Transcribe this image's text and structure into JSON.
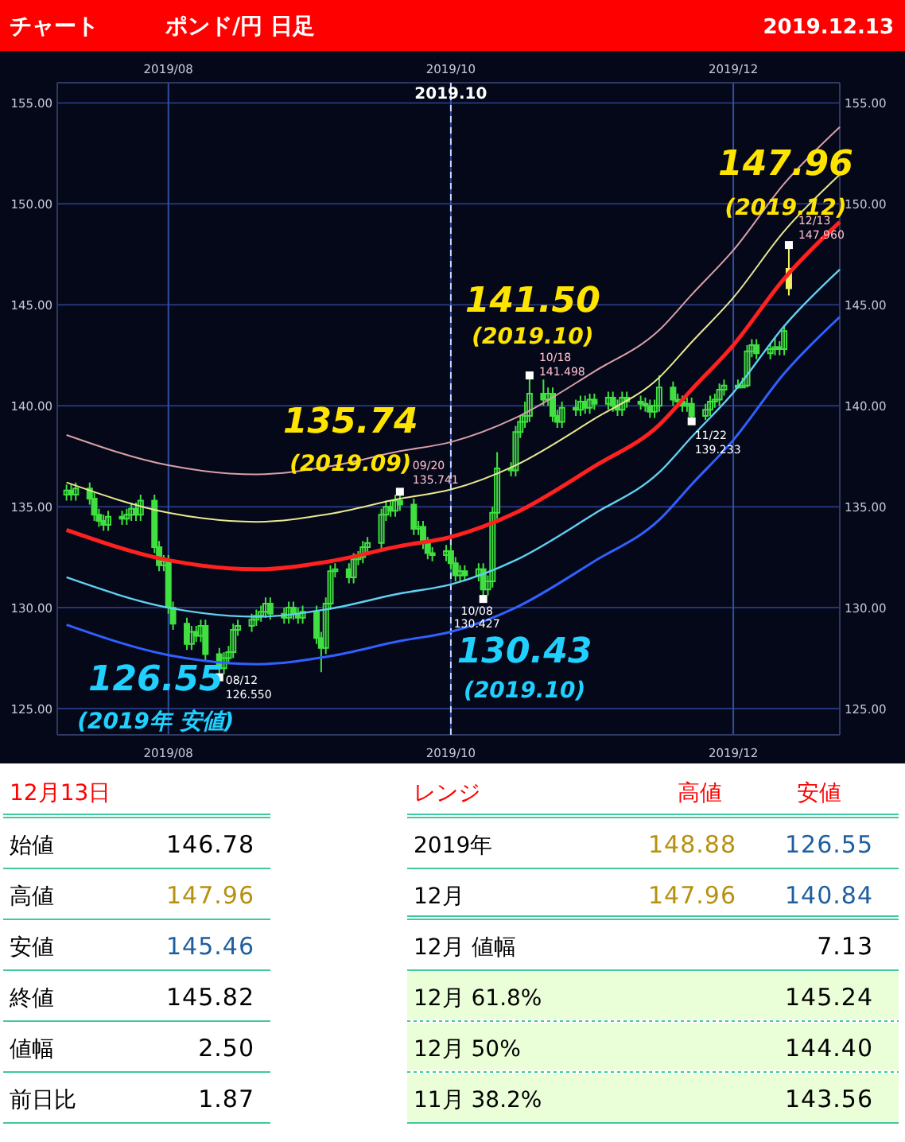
{
  "chart_data": [
    {
      "type": "candlestick",
      "title": "ポンド/円 日足",
      "subtitle": "2019.12.13",
      "xlim": [
        "2019-07-08",
        "2019-12-24"
      ],
      "xticks": [
        {
          "value": "2019-08-01",
          "label": "2019/08"
        },
        {
          "value": "2019-10-01",
          "label": "2019/10"
        },
        {
          "value": "2019-12-01",
          "label": "2019/12"
        }
      ],
      "x2lim": [
        "2019-07-08",
        "2019-12-24"
      ],
      "x2ticks": [
        {
          "value": "2019-08-01",
          "label": "2019/08"
        },
        {
          "value": "2019-10-01",
          "label": "2019/10"
        },
        {
          "value": "2019-12-01",
          "label": "2019/12"
        }
      ],
      "ylim": [
        123.7,
        156.0
      ],
      "yticks": [
        {
          "value": 125,
          "label": "125.00"
        },
        {
          "value": 130,
          "label": "130.00"
        },
        {
          "value": 135,
          "label": "135.00"
        },
        {
          "value": 140,
          "label": "140.00"
        },
        {
          "value": 145,
          "label": "145.00"
        },
        {
          "value": 150,
          "label": "150.00"
        },
        {
          "value": 155,
          "label": "155.00"
        }
      ],
      "y2lim": [
        123.7,
        156.0
      ],
      "y2ticks": [
        {
          "value": 125,
          "label": "125.00"
        },
        {
          "value": 130,
          "label": "130.00"
        },
        {
          "value": 135,
          "label": "135.00"
        },
        {
          "value": 140,
          "label": "140.00"
        },
        {
          "value": 145,
          "label": "145.00"
        },
        {
          "value": 150,
          "label": "150.00"
        },
        {
          "value": 155,
          "label": "155.00"
        }
      ],
      "grid": true,
      "ref_lines": [
        {
          "axis": "x",
          "value": "2019-10-01",
          "label": "2019.10",
          "line_style": "dashed",
          "color": "#c8d8ff"
        }
      ],
      "series": [
        {
          "type": "candlestick",
          "color": "#40e040",
          "x": [
            "2019-07-10",
            "2019-07-11",
            "2019-07-12",
            "2019-07-15",
            "2019-07-16",
            "2019-07-17",
            "2019-07-18",
            "2019-07-19",
            "2019-07-22",
            "2019-07-23",
            "2019-07-24",
            "2019-07-25",
            "2019-07-26",
            "2019-07-29",
            "2019-07-30",
            "2019-07-31",
            "2019-08-01",
            "2019-08-02",
            "2019-08-05",
            "2019-08-06",
            "2019-08-07",
            "2019-08-08",
            "2019-08-09",
            "2019-08-12",
            "2019-08-13",
            "2019-08-14",
            "2019-08-15",
            "2019-08-16",
            "2019-08-19",
            "2019-08-20",
            "2019-08-21",
            "2019-08-22",
            "2019-08-23",
            "2019-08-26",
            "2019-08-27",
            "2019-08-28",
            "2019-08-29",
            "2019-08-30",
            "2019-09-02",
            "2019-09-03",
            "2019-09-04",
            "2019-09-05",
            "2019-09-06",
            "2019-09-09",
            "2019-09-10",
            "2019-09-11",
            "2019-09-12",
            "2019-09-13",
            "2019-09-16",
            "2019-09-17",
            "2019-09-18",
            "2019-09-19",
            "2019-09-20",
            "2019-09-23",
            "2019-09-24",
            "2019-09-25",
            "2019-09-26",
            "2019-09-27",
            "2019-09-30",
            "2019-10-01",
            "2019-10-02",
            "2019-10-03",
            "2019-10-04",
            "2019-10-07",
            "2019-10-08",
            "2019-10-09",
            "2019-10-10",
            "2019-10-11",
            "2019-10-14",
            "2019-10-15",
            "2019-10-16",
            "2019-10-17",
            "2019-10-18",
            "2019-10-21",
            "2019-10-22",
            "2019-10-23",
            "2019-10-24",
            "2019-10-25",
            "2019-10-28",
            "2019-10-29",
            "2019-10-30",
            "2019-10-31",
            "2019-11-01",
            "2019-11-04",
            "2019-11-05",
            "2019-11-06",
            "2019-11-07",
            "2019-11-08",
            "2019-11-11",
            "2019-11-12",
            "2019-11-13",
            "2019-11-14",
            "2019-11-15",
            "2019-11-18",
            "2019-11-19",
            "2019-11-20",
            "2019-11-21",
            "2019-11-22",
            "2019-11-25",
            "2019-11-26",
            "2019-11-27",
            "2019-11-28",
            "2019-11-29",
            "2019-12-02",
            "2019-12-03",
            "2019-12-04",
            "2019-12-05",
            "2019-12-06",
            "2019-12-09",
            "2019-12-10",
            "2019-12-11",
            "2019-12-12"
          ],
          "ohlc": [
            [
              135.6,
              136.1,
              135.3,
              135.8
            ],
            [
              135.8,
              136.1,
              135.3,
              135.6
            ],
            [
              135.6,
              136.2,
              135.3,
              135.9
            ],
            [
              135.9,
              136.2,
              135.1,
              135.4
            ],
            [
              135.4,
              135.7,
              134.3,
              134.6
            ],
            [
              134.6,
              134.9,
              134.0,
              134.3
            ],
            [
              134.3,
              134.6,
              133.8,
              134.1
            ],
            [
              134.1,
              134.8,
              133.8,
              134.5
            ],
            [
              134.5,
              134.8,
              134.1,
              134.4
            ],
            [
              134.4,
              134.9,
              134.1,
              134.6
            ],
            [
              134.6,
              135.2,
              134.3,
              134.9
            ],
            [
              134.9,
              135.2,
              134.3,
              134.6
            ],
            [
              134.6,
              135.6,
              134.3,
              135.3
            ],
            [
              135.3,
              135.6,
              132.7,
              133.0
            ],
            [
              133.0,
              133.3,
              131.8,
              132.1
            ],
            [
              132.1,
              132.6,
              131.8,
              132.3
            ],
            [
              132.3,
              132.6,
              129.7,
              130.0
            ],
            [
              130.0,
              130.3,
              128.9,
              129.2
            ],
            [
              129.2,
              129.5,
              127.9,
              128.2
            ],
            [
              128.2,
              129.1,
              127.9,
              128.8
            ],
            [
              128.8,
              129.1,
              128.3,
              128.6
            ],
            [
              128.6,
              129.4,
              128.3,
              129.1
            ],
            [
              129.1,
              129.4,
              127.4,
              127.7
            ],
            [
              127.7,
              128.0,
              126.55,
              127.0
            ],
            [
              127.0,
              127.8,
              126.7,
              127.5
            ],
            [
              127.5,
              128.1,
              127.2,
              127.8
            ],
            [
              127.8,
              129.2,
              127.5,
              128.9
            ],
            [
              128.9,
              129.4,
              128.6,
              129.1
            ],
            [
              129.1,
              129.7,
              128.8,
              129.4
            ],
            [
              129.4,
              129.9,
              129.1,
              129.6
            ],
            [
              129.6,
              130.1,
              129.3,
              129.8
            ],
            [
              129.8,
              130.5,
              129.5,
              130.2
            ],
            [
              130.2,
              130.5,
              129.4,
              129.7
            ],
            [
              129.7,
              130.0,
              129.2,
              129.5
            ],
            [
              129.5,
              130.3,
              129.2,
              130.0
            ],
            [
              130.0,
              130.3,
              129.4,
              129.7
            ],
            [
              129.7,
              130.0,
              129.2,
              129.5
            ],
            [
              129.5,
              130.1,
              129.2,
              129.8
            ],
            [
              129.8,
              130.1,
              128.2,
              128.5
            ],
            [
              128.5,
              128.8,
              126.8,
              128.0
            ],
            [
              128.0,
              130.5,
              127.7,
              130.2
            ],
            [
              130.2,
              132.1,
              129.9,
              131.8
            ],
            [
              131.8,
              132.2,
              131.5,
              131.9
            ],
            [
              131.9,
              132.2,
              131.2,
              131.5
            ],
            [
              131.5,
              132.7,
              131.2,
              132.4
            ],
            [
              132.4,
              132.8,
              132.1,
              132.5
            ],
            [
              132.5,
              133.3,
              132.2,
              133.0
            ],
            [
              133.0,
              133.5,
              132.7,
              133.2
            ],
            [
              133.2,
              134.9,
              132.9,
              134.6
            ],
            [
              134.6,
              135.3,
              134.3,
              135.0
            ],
            [
              135.0,
              135.3,
              134.5,
              134.8
            ],
            [
              134.8,
              135.6,
              134.5,
              135.3
            ],
            [
              135.3,
              135.74,
              134.8,
              135.1
            ],
            [
              135.1,
              135.4,
              133.6,
              133.9
            ],
            [
              133.9,
              134.3,
              133.6,
              134.0
            ],
            [
              134.0,
              134.3,
              132.9,
              133.2
            ],
            [
              133.2,
              133.5,
              132.4,
              132.7
            ],
            [
              132.7,
              133.0,
              132.3,
              132.6
            ],
            [
              132.6,
              133.1,
              132.3,
              132.8
            ],
            [
              132.8,
              133.1,
              131.9,
              132.2
            ],
            [
              132.2,
              132.5,
              131.3,
              131.6
            ],
            [
              131.6,
              132.1,
              131.3,
              131.8
            ],
            [
              131.8,
              132.1,
              131.3,
              131.6
            ],
            [
              131.6,
              132.2,
              131.3,
              131.9
            ],
            [
              131.9,
              132.2,
              130.43,
              130.9
            ],
            [
              130.9,
              131.6,
              130.6,
              131.3
            ],
            [
              131.3,
              135.0,
              131.0,
              134.7
            ],
            [
              134.7,
              137.7,
              134.4,
              136.9
            ],
            [
              136.9,
              137.2,
              136.5,
              136.8
            ],
            [
              136.8,
              139.0,
              136.5,
              138.7
            ],
            [
              138.7,
              139.5,
              138.4,
              139.2
            ],
            [
              139.2,
              140.2,
              138.9,
              139.5
            ],
            [
              139.5,
              141.5,
              139.2,
              140.6
            ],
            [
              140.6,
              141.3,
              140.0,
              140.3
            ],
            [
              140.3,
              140.9,
              140.0,
              140.6
            ],
            [
              140.6,
              140.9,
              139.2,
              139.5
            ],
            [
              139.5,
              139.8,
              138.9,
              139.2
            ],
            [
              139.2,
              140.2,
              138.9,
              139.9
            ],
            [
              139.9,
              140.3,
              139.5,
              139.8
            ],
            [
              139.8,
              140.5,
              139.5,
              140.2
            ],
            [
              140.2,
              140.5,
              139.6,
              139.9
            ],
            [
              139.9,
              140.6,
              139.6,
              140.3
            ],
            [
              140.3,
              140.6,
              139.8,
              140.1
            ],
            [
              140.1,
              140.7,
              139.8,
              140.4
            ],
            [
              140.4,
              140.7,
              139.7,
              140.0
            ],
            [
              140.0,
              140.3,
              139.5,
              139.8
            ],
            [
              139.8,
              140.7,
              139.5,
              140.4
            ],
            [
              140.4,
              140.7,
              139.9,
              140.2
            ],
            [
              140.2,
              140.5,
              139.8,
              140.1
            ],
            [
              140.1,
              140.4,
              139.7,
              140.0
            ],
            [
              140.0,
              140.3,
              139.4,
              139.7
            ],
            [
              139.7,
              140.3,
              139.4,
              140.0
            ],
            [
              140.0,
              141.5,
              139.7,
              140.9
            ],
            [
              140.9,
              141.2,
              140.0,
              140.3
            ],
            [
              140.3,
              140.6,
              139.9,
              140.2
            ],
            [
              140.2,
              140.5,
              139.7,
              140.0
            ],
            [
              140.0,
              140.4,
              139.7,
              140.1
            ],
            [
              140.1,
              140.4,
              139.23,
              139.5
            ],
            [
              139.5,
              140.1,
              139.3,
              139.8
            ],
            [
              139.8,
              140.5,
              139.5,
              140.2
            ],
            [
              140.2,
              140.6,
              139.9,
              140.3
            ],
            [
              140.3,
              141.1,
              140.0,
              140.8
            ],
            [
              140.8,
              141.3,
              140.5,
              141.0
            ],
            [
              141.0,
              141.3,
              140.84,
              140.9
            ],
            [
              140.9,
              141.4,
              140.9,
              141.0
            ],
            [
              141.0,
              143.0,
              140.9,
              142.7
            ],
            [
              142.7,
              143.3,
              142.4,
              143.0
            ],
            [
              143.0,
              143.3,
              142.3,
              142.6
            ],
            [
              142.6,
              143.1,
              142.3,
              142.8
            ],
            [
              142.8,
              143.4,
              142.5,
              142.9
            ],
            [
              142.9,
              143.2,
              142.5,
              142.8
            ],
            [
              142.8,
              144.0,
              142.5,
              143.7
            ]
          ]
        },
        {
          "type": "candlestick",
          "color": "#f0f060",
          "x": [
            "2019-12-13"
          ],
          "ohlc": [
            [
              146.78,
              147.96,
              145.46,
              145.82
            ]
          ]
        },
        {
          "type": "line",
          "color": "#d8a0a8",
          "x": [
            "2019-07-10",
            "2019-08-01",
            "2019-08-20",
            "2019-09-05",
            "2019-09-20",
            "2019-10-01",
            "2019-10-15",
            "2019-11-01",
            "2019-11-15",
            "2019-11-22",
            "2019-12-01",
            "2019-12-12",
            "2019-12-24"
          ],
          "values": [
            138.55,
            137.05,
            136.6,
            137.0,
            137.75,
            138.2,
            139.4,
            141.7,
            143.75,
            145.5,
            147.7,
            151.0,
            153.8
          ]
        },
        {
          "type": "line",
          "color": "#e8e890",
          "x": [
            "2019-07-10",
            "2019-08-01",
            "2019-08-20",
            "2019-09-05",
            "2019-09-20",
            "2019-10-01",
            "2019-10-15",
            "2019-11-01",
            "2019-11-15",
            "2019-11-22",
            "2019-12-01",
            "2019-12-12",
            "2019-12-24"
          ],
          "values": [
            136.2,
            134.7,
            134.25,
            134.65,
            135.4,
            135.85,
            137.05,
            139.35,
            141.4,
            143.15,
            145.35,
            148.65,
            151.45
          ]
        },
        {
          "type": "line",
          "color": "#ff2020",
          "x": [
            "2019-07-10",
            "2019-08-01",
            "2019-08-20",
            "2019-09-05",
            "2019-09-20",
            "2019-10-01",
            "2019-10-15",
            "2019-11-01",
            "2019-11-15",
            "2019-11-22",
            "2019-12-01",
            "2019-12-12",
            "2019-12-24"
          ],
          "values": [
            133.85,
            132.35,
            131.9,
            132.3,
            133.05,
            133.5,
            134.7,
            137.0,
            139.05,
            140.8,
            143.0,
            146.3,
            149.1
          ]
        },
        {
          "type": "line",
          "color": "#60d0f0",
          "x": [
            "2019-07-10",
            "2019-08-01",
            "2019-08-20",
            "2019-09-05",
            "2019-09-20",
            "2019-10-01",
            "2019-10-15",
            "2019-11-01",
            "2019-11-15",
            "2019-11-22",
            "2019-12-01",
            "2019-12-12",
            "2019-12-24"
          ],
          "values": [
            131.5,
            130.0,
            129.55,
            129.95,
            130.7,
            131.15,
            132.35,
            134.65,
            136.7,
            138.45,
            140.65,
            143.95,
            146.75
          ]
        },
        {
          "type": "line",
          "color": "#3060ff",
          "x": [
            "2019-07-10",
            "2019-08-01",
            "2019-08-20",
            "2019-09-05",
            "2019-09-20",
            "2019-10-01",
            "2019-10-15",
            "2019-11-01",
            "2019-11-15",
            "2019-11-22",
            "2019-12-01",
            "2019-12-12",
            "2019-12-24"
          ],
          "values": [
            129.15,
            127.65,
            127.2,
            127.6,
            128.35,
            128.8,
            130.0,
            132.3,
            134.35,
            136.1,
            138.3,
            141.6,
            144.4
          ]
        },
        {
          "type": "scatter",
          "color": "#ffffff",
          "marker": "square",
          "x": [
            "2019-08-12",
            "2019-09-20",
            "2019-10-08",
            "2019-10-18",
            "2019-11-22",
            "2019-12-13"
          ],
          "values": [
            126.55,
            135.74,
            130.43,
            141.5,
            139.23,
            147.96
          ]
        }
      ],
      "annotations": [
        "チャート",
        {
          "text": "147.96\n(2019.12)",
          "x": "2019-12-13",
          "y": 147.96
        },
        {
          "text": "141.50\n(2019.10)",
          "x": "2019-10-18",
          "y": 141.5
        },
        {
          "text": "135.74\n(2019.09)",
          "x": "2019-09-20",
          "y": 135.74
        },
        {
          "text": "126.55\n(2019年 安値)",
          "x": "2019-08-12",
          "y": 126.55
        },
        {
          "text": "130.43\n(2019.10)",
          "x": "2019-10-08",
          "y": 130.43
        },
        {
          "text": "12/13\n147.960",
          "x": "2019-12-13",
          "y": 147.96
        },
        {
          "text": "10/18\n141.498",
          "x": "2019-10-18",
          "y": 141.5
        },
        {
          "text": "09/20\n135.741",
          "x": "2019-09-20",
          "y": 135.74
        },
        {
          "text": "08/12\n126.550",
          "x": "2019-08-12",
          "y": 126.55
        },
        {
          "text": "10/08\n130.427",
          "x": "2019-10-08",
          "y": 130.43
        },
        {
          "text": "11/22\n139.233",
          "x": "2019-11-22",
          "y": 139.23
        }
      ]
    },
    {
      "type": "other",
      "title": "12月13日",
      "categories": [
        "始値",
        "高値",
        "安値",
        "終値",
        "値幅",
        "前日比"
      ],
      "values": [
        146.78,
        147.96,
        145.46,
        145.82,
        2.5,
        1.87
      ],
      "value_labels": [
        "146.78",
        "147.96",
        "145.46",
        "145.82",
        "2.50",
        "1.87"
      ],
      "colors": [
        "#000000",
        "#b89010",
        "#1f5fa0",
        "#000000",
        "#000000",
        "#000000"
      ]
    },
    {
      "type": "other",
      "title": "レンジ",
      "categories": [
        "2019年",
        "12月"
      ],
      "series": [
        {
          "name": "高値",
          "colors": [
            "#b89010",
            "#b89010"
          ],
          "values": [
            148.88,
            147.96
          ],
          "value_labels": [
            "148.88",
            "147.96"
          ]
        },
        {
          "name": "安値",
          "colors": [
            "#1f5fa0",
            "#1f5fa0"
          ],
          "values": [
            126.55,
            140.84
          ],
          "value_labels": [
            "126.55",
            "140.84"
          ]
        }
      ]
    },
    {
      "type": "other",
      "categories": [
        "12月 値幅",
        "12月 61.8%",
        "12月 50%",
        "11月 38.2%"
      ],
      "values": [
        7.13,
        145.24,
        144.4,
        143.56
      ],
      "value_labels": [
        "7.13",
        "145.24",
        "144.40",
        "143.56"
      ]
    }
  ]
}
